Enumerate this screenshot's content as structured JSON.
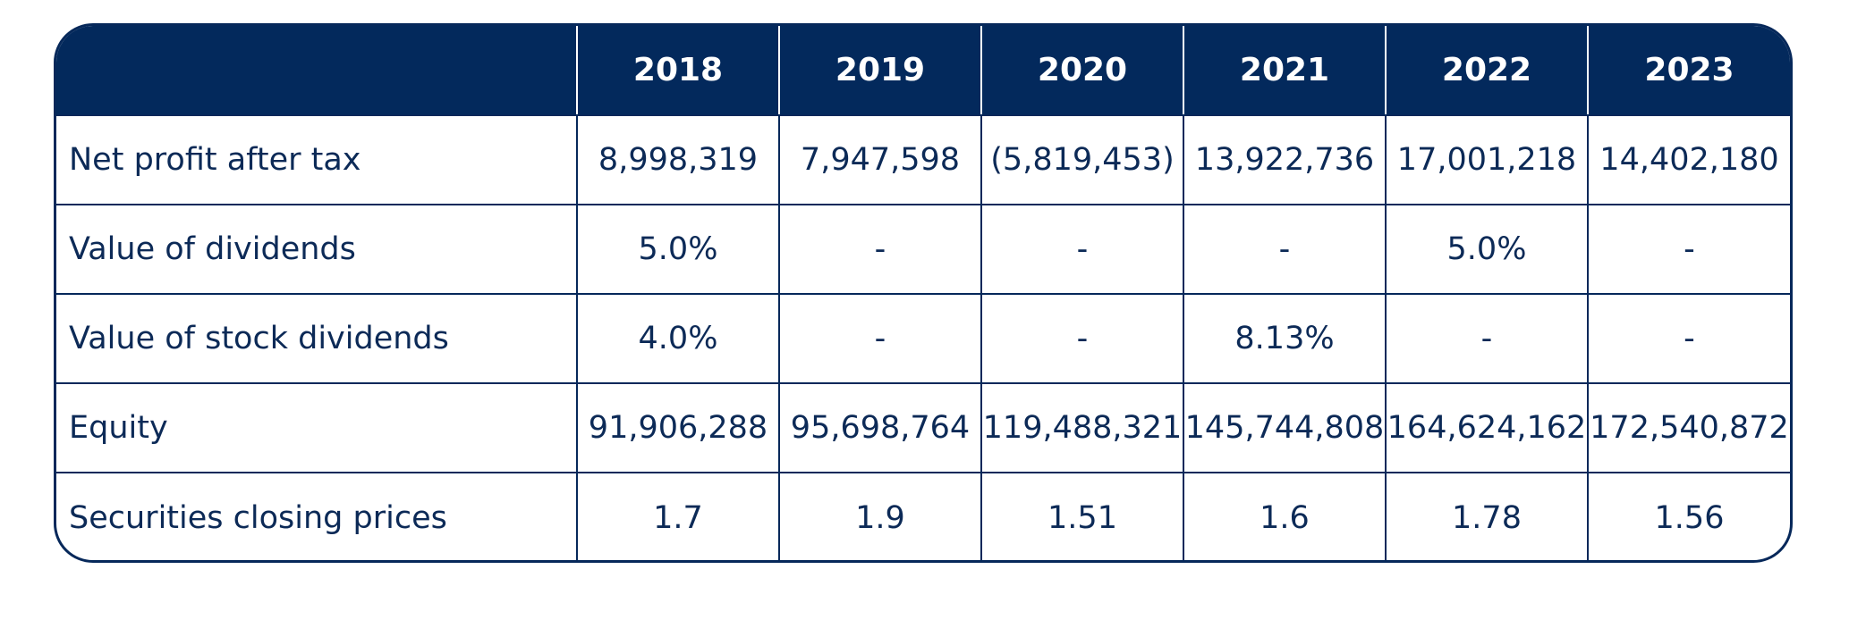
{
  "table": {
    "corner": "",
    "years": [
      "2018",
      "2019",
      "2020",
      "2021",
      "2022",
      "2023"
    ],
    "rows": [
      {
        "label": "Net profit after tax",
        "values": [
          "8,998,319",
          "7,947,598",
          "(5,819,453)",
          "13,922,736",
          "17,001,218",
          "14,402,180"
        ]
      },
      {
        "label": "Value of dividends",
        "values": [
          "5.0%",
          "-",
          "-",
          "-",
          "5.0%",
          "-"
        ]
      },
      {
        "label": "Value of stock dividends",
        "values": [
          "4.0%",
          "-",
          "-",
          "8.13%",
          "-",
          "-"
        ]
      },
      {
        "label": "Equity",
        "values": [
          "91,906,288",
          "95,698,764",
          "119,488,321",
          "145,744,808",
          "164,624,162",
          "172,540,872"
        ]
      },
      {
        "label": "Securities closing prices",
        "values": [
          "1.7",
          "1.9",
          "1.51",
          "1.6",
          "1.78",
          "1.56"
        ]
      }
    ]
  },
  "colors": {
    "header_bg": "#03295c",
    "header_text": "#ffffff",
    "border": "#06285a",
    "body_text": "#0c2a57"
  }
}
